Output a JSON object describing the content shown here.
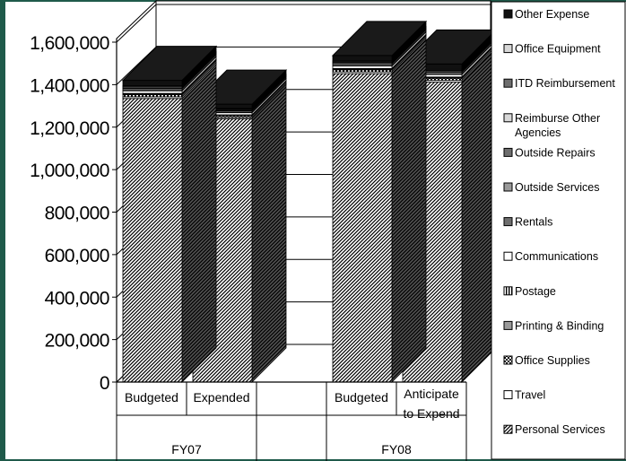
{
  "chart_data": {
    "type": "bar",
    "stacked": true,
    "three_d": true,
    "groups": [
      {
        "label": "FY07",
        "categories": [
          "Budgeted",
          "Expended"
        ]
      },
      {
        "label": "FY08",
        "categories": [
          "Budgeted",
          "Anticipate to Expend"
        ]
      }
    ],
    "categories": [
      "Budgeted",
      "Expended",
      "Budgeted",
      "Anticipate to Expend"
    ],
    "category_lines": [
      [
        "Budgeted"
      ],
      [
        "Expended"
      ],
      [
        "Budgeted"
      ],
      [
        "Anticipate",
        "to Expend"
      ]
    ],
    "ylim": [
      0,
      1600000
    ],
    "yticks": [
      "0",
      "200,000",
      "400,000",
      "600,000",
      "800,000",
      "1,000,000",
      "1,200,000",
      "1,400,000",
      "1,600,000"
    ],
    "grid": true,
    "legend_position": "right",
    "series": [
      {
        "name": "Personal Services",
        "pattern": "diag",
        "values": [
          1335000,
          1240000,
          1452000,
          1412000
        ]
      },
      {
        "name": "Travel",
        "pattern": "white",
        "values": [
          8000,
          6000,
          8000,
          8000
        ]
      },
      {
        "name": "Office Supplies",
        "pattern": "checker",
        "values": [
          10000,
          8000,
          10000,
          10000
        ]
      },
      {
        "name": "Printing & Binding",
        "pattern": "half",
        "values": [
          3000,
          2000,
          3000,
          3000
        ]
      },
      {
        "name": "Postage",
        "pattern": "vlines",
        "values": [
          3000,
          2000,
          3000,
          3000
        ]
      },
      {
        "name": "Communications",
        "pattern": "white",
        "values": [
          12000,
          10000,
          12000,
          12000
        ]
      },
      {
        "name": "Rentals",
        "pattern": "gray",
        "values": [
          2000,
          2000,
          2000,
          2000
        ]
      },
      {
        "name": "Outside Services",
        "pattern": "half",
        "values": [
          8000,
          6000,
          8000,
          8000
        ]
      },
      {
        "name": "Outside Repairs",
        "pattern": "gray",
        "values": [
          2000,
          2000,
          2000,
          2000
        ]
      },
      {
        "name": "Reimburse Other Agencies",
        "pattern": "light",
        "values": [
          5000,
          4000,
          5000,
          5000
        ]
      },
      {
        "name": "ITD Reimbursement",
        "pattern": "gray",
        "values": [
          3000,
          3000,
          3000,
          3000
        ]
      },
      {
        "name": "Office Equipment",
        "pattern": "light",
        "values": [
          4000,
          3000,
          4000,
          4000
        ]
      },
      {
        "name": "Other Expense",
        "pattern": "black",
        "values": [
          25000,
          20000,
          25000,
          25000
        ]
      }
    ],
    "legend_lines": {
      "Reimburse Other Agencies": [
        "Reimburse Other",
        "Agencies"
      ]
    }
  }
}
